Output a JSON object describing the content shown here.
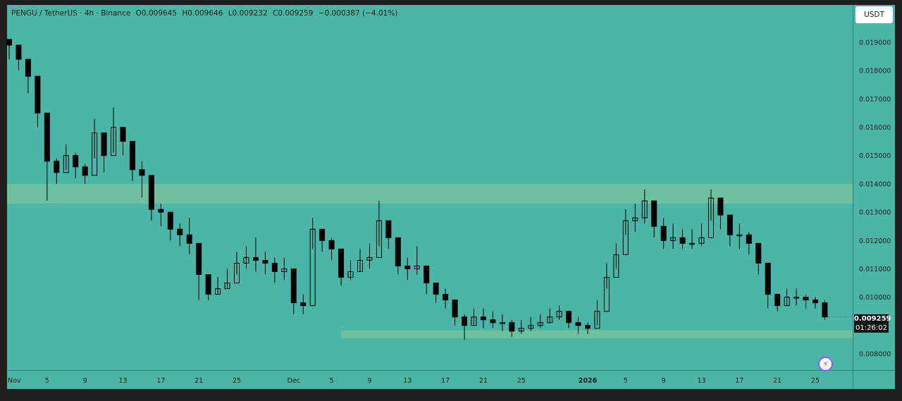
{
  "header": {
    "symbol": "PENGU / TetherUS · 4h · Binance",
    "open": "O0.009645",
    "high": "H0.009646",
    "low": "L0.009232",
    "close": "C0.009259",
    "change": "−0.000387 (−4.01%)"
  },
  "currency_button": "USDT",
  "price_badge": {
    "price": "0.009259",
    "countdown": "01:26:02"
  },
  "colors": {
    "background": "#4bb6a7",
    "zone": "#72c29e",
    "candle": "#000000",
    "border": "#1e1e1e"
  },
  "icons": {
    "bolt": "lightning-bolt-icon"
  },
  "chart_data": {
    "type": "line",
    "title": "PENGU / TetherUS · 4h · Binance",
    "xlabel": "",
    "ylabel": "",
    "x_ticks": [
      "Nov",
      "5",
      "9",
      "13",
      "17",
      "21",
      "25",
      "Dec",
      "5",
      "9",
      "13",
      "17",
      "21",
      "25",
      "2026",
      "5",
      "9",
      "13",
      "17",
      "21",
      "25"
    ],
    "y_ticks": [
      "0.019000",
      "0.018000",
      "0.017000",
      "0.016000",
      "0.015000",
      "0.014000",
      "0.013000",
      "0.012000",
      "0.011000",
      "0.010000",
      "0.008000"
    ],
    "ylim": [
      0.0076,
      0.0201
    ],
    "zones": [
      {
        "name": "resistance",
        "from": "2025-11-01",
        "to": "2026-01-27",
        "low": 0.0133,
        "high": 0.014
      },
      {
        "name": "support",
        "from": "2025-12-06",
        "to": "2026-01-27",
        "low": 0.00855,
        "high": 0.00883
      }
    ],
    "series": [
      {
        "x": [
          "2025-11-01",
          "2025-11-02",
          "2025-11-03",
          "2025-11-04",
          "2025-11-05",
          "2025-11-06",
          "2025-11-07",
          "2025-11-08",
          "2025-11-09",
          "2025-11-10",
          "2025-11-11",
          "2025-11-12",
          "2025-11-13",
          "2025-11-14",
          "2025-11-15",
          "2025-11-16",
          "2025-11-17",
          "2025-11-18",
          "2025-11-19",
          "2025-11-20",
          "2025-11-21",
          "2025-11-22",
          "2025-11-23",
          "2025-11-24",
          "2025-11-25",
          "2025-11-26",
          "2025-11-27",
          "2025-11-28",
          "2025-11-29",
          "2025-11-30",
          "2025-12-01",
          "2025-12-02",
          "2025-12-03",
          "2025-12-04",
          "2025-12-05",
          "2025-12-06",
          "2025-12-07",
          "2025-12-08",
          "2025-12-09",
          "2025-12-10",
          "2025-12-11",
          "2025-12-12",
          "2025-12-13",
          "2025-12-14",
          "2025-12-15",
          "2025-12-16",
          "2025-12-17",
          "2025-12-18",
          "2025-12-19",
          "2025-12-20",
          "2025-12-21",
          "2025-12-22",
          "2025-12-23",
          "2025-12-24",
          "2025-12-25",
          "2025-12-26",
          "2025-12-27",
          "2025-12-28",
          "2025-12-29",
          "2025-12-30",
          "2025-12-31",
          "2026-01-01",
          "2026-01-02",
          "2026-01-03",
          "2026-01-04",
          "2026-01-05",
          "2026-01-06",
          "2026-01-07",
          "2026-01-08",
          "2026-01-09",
          "2026-01-10",
          "2026-01-11",
          "2026-01-12",
          "2026-01-13",
          "2026-01-14",
          "2026-01-15",
          "2026-01-16",
          "2026-01-17",
          "2026-01-18",
          "2026-01-19",
          "2026-01-20",
          "2026-01-21",
          "2026-01-22",
          "2026-01-23",
          "2026-01-24",
          "2026-01-25",
          "2026-01-26"
        ],
        "close": [
          0.0189,
          0.0184,
          0.0178,
          0.0165,
          0.0148,
          0.0144,
          0.015,
          0.0146,
          0.0143,
          0.0158,
          0.015,
          0.016,
          0.0155,
          0.0145,
          0.0143,
          0.0131,
          0.013,
          0.0124,
          0.0122,
          0.0119,
          0.0108,
          0.0101,
          0.0103,
          0.0105,
          0.0112,
          0.0114,
          0.0113,
          0.0112,
          0.0109,
          0.011,
          0.0098,
          0.0097,
          0.0124,
          0.012,
          0.0117,
          0.0107,
          0.0109,
          0.0113,
          0.0114,
          0.0127,
          0.0121,
          0.0111,
          0.011,
          0.0111,
          0.0105,
          0.0101,
          0.0099,
          0.0093,
          0.009,
          0.0093,
          0.0092,
          0.0091,
          0.0091,
          0.0088,
          0.0089,
          0.009,
          0.0091,
          0.0093,
          0.0095,
          0.0091,
          0.009,
          0.0089,
          0.0095,
          0.0107,
          0.0115,
          0.0127,
          0.0128,
          0.0134,
          0.0125,
          0.012,
          0.0121,
          0.0119,
          0.0119,
          0.0121,
          0.0135,
          0.0129,
          0.0122,
          0.0122,
          0.0119,
          0.0112,
          0.0101,
          0.0097,
          0.01,
          0.01,
          0.0099,
          0.0098,
          0.0093
        ],
        "high": [
          0.0191,
          0.0186,
          0.0181,
          0.017,
          0.0152,
          0.0149,
          0.0154,
          0.0151,
          0.0147,
          0.0163,
          0.0158,
          0.0167,
          0.0159,
          0.0151,
          0.0148,
          0.0136,
          0.0133,
          0.0128,
          0.0126,
          0.0128,
          0.0113,
          0.0105,
          0.0107,
          0.011,
          0.0116,
          0.0118,
          0.0121,
          0.0116,
          0.0114,
          0.0114,
          0.0103,
          0.0101,
          0.0128,
          0.0124,
          0.0121,
          0.0111,
          0.0113,
          0.0117,
          0.0119,
          0.0134,
          0.0126,
          0.0116,
          0.0114,
          0.0118,
          0.011,
          0.0104,
          0.0103,
          0.0098,
          0.0094,
          0.0096,
          0.0096,
          0.0095,
          0.0094,
          0.0092,
          0.0092,
          0.0093,
          0.0094,
          0.0096,
          0.0097,
          0.0094,
          0.0093,
          0.0091,
          0.0099,
          0.0112,
          0.0119,
          0.0131,
          0.0133,
          0.0138,
          0.0132,
          0.0128,
          0.0126,
          0.0124,
          0.0124,
          0.0126,
          0.0138,
          0.0134,
          0.0126,
          0.0126,
          0.0123,
          0.0116,
          0.0105,
          0.01,
          0.0103,
          0.0103,
          0.0101,
          0.01,
          0.0099
        ],
        "low": [
          0.0184,
          0.018,
          0.0172,
          0.016,
          0.0134,
          0.014,
          0.0145,
          0.0142,
          0.014,
          0.0149,
          0.0144,
          0.0151,
          0.015,
          0.0141,
          0.0135,
          0.0127,
          0.0125,
          0.012,
          0.0118,
          0.0115,
          0.0099,
          0.0099,
          0.0101,
          0.0103,
          0.0108,
          0.011,
          0.0109,
          0.0108,
          0.0105,
          0.0106,
          0.0094,
          0.0094,
          0.0117,
          0.0116,
          0.0113,
          0.0104,
          0.0106,
          0.0109,
          0.011,
          0.0118,
          0.0117,
          0.0108,
          0.0106,
          0.0108,
          0.0101,
          0.0098,
          0.0096,
          0.009,
          0.0085,
          0.009,
          0.0089,
          0.0089,
          0.0088,
          0.0086,
          0.0087,
          0.0088,
          0.0089,
          0.0091,
          0.0092,
          0.0089,
          0.0087,
          0.0087,
          0.009,
          0.0103,
          0.011,
          0.0122,
          0.0123,
          0.0126,
          0.0121,
          0.0117,
          0.0117,
          0.0117,
          0.0117,
          0.0118,
          0.0127,
          0.0124,
          0.0118,
          0.0117,
          0.0115,
          0.0108,
          0.0096,
          0.0095,
          0.0097,
          0.0097,
          0.0096,
          0.0096,
          0.0092
        ]
      }
    ]
  }
}
